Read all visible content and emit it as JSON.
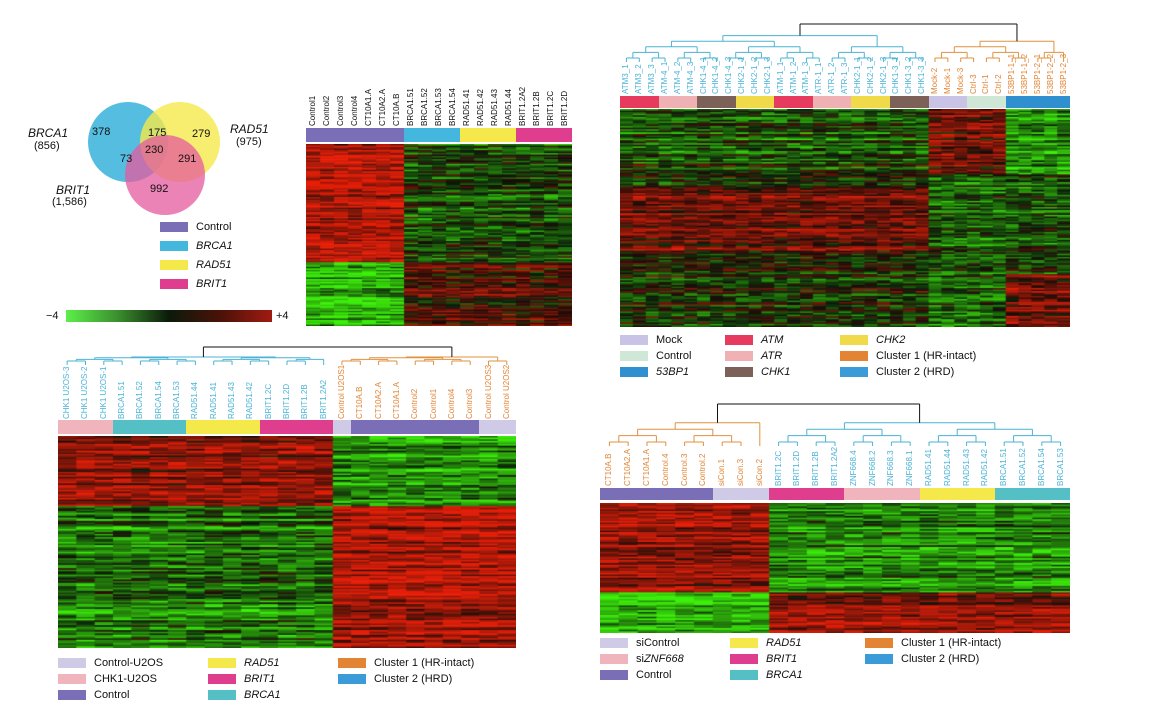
{
  "colors": {
    "control": "#7a6fb7",
    "brca1": "#43b7dd",
    "rad51": "#f5e84a",
    "brit1": "#df3d8e",
    "mock": "#c9c4e6",
    "controlLight": "#cfe7d6",
    "p53bp1": "#2f8fcf",
    "atm": "#e63a5e",
    "atr": "#f0b1b4",
    "chk1": "#7b6158",
    "chk2": "#f0da4a",
    "cluster1": "#e28434",
    "cluster2": "#3b9ad8",
    "controlU2os": "#cfcbe6",
    "chk1U2os": "#f0b5bc",
    "brca1Teal": "#54bfc4",
    "siControl": "#cfcbe6",
    "siZnf": "#f0b5bc",
    "dendroBlue": "#4ab3d6",
    "dendroOrange": "#e0913f"
  },
  "venn": {
    "labels": {
      "brca1": "BRCA1",
      "brca1_count": "(856)",
      "rad51": "RAD51",
      "rad51_count": "(975)",
      "brit1": "BRIT1",
      "brit1_count": "(1,586)"
    },
    "regions": {
      "brca1_only": "378",
      "brca1_rad51": "175",
      "rad51_only": "279",
      "all": "230",
      "brca1_brit1": "73",
      "rad51_brit1": "291",
      "brit1_only": "992"
    }
  },
  "panelA": {
    "legend": [
      {
        "label": "Control",
        "colorKey": "control",
        "italic": false
      },
      {
        "label": "BRCA1",
        "colorKey": "brca1",
        "italic": true
      },
      {
        "label": "RAD51",
        "colorKey": "rad51",
        "italic": true
      },
      {
        "label": "BRIT1",
        "colorKey": "brit1",
        "italic": true
      }
    ],
    "scale": {
      "min": "−4",
      "max": "+4"
    },
    "columns": [
      "Control1",
      "Control2",
      "Control3",
      "Control4",
      "CT10A1.A",
      "CT10A2.A",
      "CT10A.B",
      "BRCA1.51",
      "BRCA1.52",
      "BRCA1.53",
      "BRCA1.54",
      "RAD51.41",
      "RAD51.42",
      "RAD51.43",
      "RAD51.44",
      "BRIT1.2A2",
      "BRIT1.2B",
      "BRIT1.2C",
      "BRIT1.2D"
    ],
    "groups": [
      {
        "key": "control",
        "n": 7
      },
      {
        "key": "brca1",
        "n": 4
      },
      {
        "key": "rad51",
        "n": 4
      },
      {
        "key": "brit1",
        "n": 4
      }
    ]
  },
  "panelB": {
    "columns": [
      "ATM3_1",
      "ATM3_2",
      "ATM3_3",
      "ATM-4_1",
      "ATM-4_2",
      "ATM-4_3",
      "CHK1-4_1",
      "CHK1-4_2",
      "CHK1-4_3",
      "CHK2-1_1",
      "CHK2-1_2",
      "CHK2-1_3",
      "ATM-1_1",
      "ATM-1_2",
      "ATM-1_3",
      "ATR-1_1",
      "ATR-1_2",
      "ATR-1_3",
      "CHK2-1_1",
      "CHK2-1_2",
      "CHK2-1_3",
      "CHK1-3_1",
      "CHK1-3_2",
      "CHK1-3_3",
      "Mock-2",
      "Mock-1",
      "Mock-3",
      "Ctrl-3",
      "Ctrl-1",
      "Ctrl-2",
      "53BP1-1_1",
      "53BP1-1_2",
      "53BP1-2_1",
      "53BP1-2_2",
      "53BP1-2_3"
    ],
    "groups": [
      {
        "key": "atm",
        "n": 3
      },
      {
        "key": "atr",
        "n": 3
      },
      {
        "key": "chk1",
        "n": 3
      },
      {
        "key": "chk2",
        "n": 3
      },
      {
        "key": "atm",
        "n": 3
      },
      {
        "key": "atr",
        "n": 3
      },
      {
        "key": "chk2",
        "n": 3
      },
      {
        "key": "chk1",
        "n": 3
      },
      {
        "key": "mock",
        "n": 3
      },
      {
        "key": "controlLight",
        "n": 3
      },
      {
        "key": "p53bp1",
        "n": 5
      }
    ],
    "legend": [
      {
        "label": "Mock",
        "colorKey": "mock",
        "italic": false
      },
      {
        "label": "ATM",
        "colorKey": "atm",
        "italic": true
      },
      {
        "label": "CHK2",
        "colorKey": "chk2",
        "italic": true
      },
      {
        "label": "Control",
        "colorKey": "controlLight",
        "italic": false
      },
      {
        "label": "ATR",
        "colorKey": "atr",
        "italic": true
      },
      {
        "label": "Cluster 1 (HR-intact)",
        "colorKey": "cluster1",
        "italic": false
      },
      {
        "label": "53BP1",
        "colorKey": "p53bp1",
        "italic": true
      },
      {
        "label": "CHK1",
        "colorKey": "chk1",
        "italic": true
      },
      {
        "label": "Cluster 2 (HRD)",
        "colorKey": "cluster2",
        "italic": false
      }
    ]
  },
  "panelC": {
    "columns": [
      "CHK1 U2OS-3",
      "CHK1 U2OS-2",
      "CHK1 U2OS-1",
      "BRCA1.51",
      "BRCA1.52",
      "BRCA1.54",
      "BRCA1.53",
      "RAD51.44",
      "RAD51.41",
      "RAD51.43",
      "RAD51.42",
      "BRIT1.2C",
      "BRIT1.2D",
      "BRIT1.2B",
      "BRIT1.2A2",
      "Control U2OS1",
      "CT10A.B",
      "CT10A2.A",
      "CT10A1.A",
      "Control2",
      "Control1",
      "Control4",
      "Control3",
      "Control U2OS3",
      "Control U2OS2"
    ],
    "groups": [
      {
        "key": "chk1U2os",
        "n": 3
      },
      {
        "key": "brca1Teal",
        "n": 4
      },
      {
        "key": "rad51",
        "n": 4
      },
      {
        "key": "brit1",
        "n": 4
      },
      {
        "key": "controlU2os",
        "n": 1
      },
      {
        "key": "control",
        "n": 7
      },
      {
        "key": "controlU2os",
        "n": 2
      }
    ],
    "legend": [
      {
        "label": "Control-U2OS",
        "colorKey": "controlU2os",
        "italic": false
      },
      {
        "label": "RAD51",
        "colorKey": "rad51",
        "italic": true
      },
      {
        "label": "Cluster 1 (HR-intact)",
        "colorKey": "cluster1",
        "italic": false
      },
      {
        "label": "CHK1-U2OS",
        "colorKey": "chk1U2os",
        "italic": false
      },
      {
        "label": "BRIT1",
        "colorKey": "brit1",
        "italic": true
      },
      {
        "label": "Cluster 2 (HRD)",
        "colorKey": "cluster2",
        "italic": false
      },
      {
        "label": "Control",
        "colorKey": "control",
        "italic": false
      },
      {
        "label": "BRCA1",
        "colorKey": "brca1Teal",
        "italic": true
      }
    ]
  },
  "panelD": {
    "columns": [
      "CT10A.B",
      "CT10A2.A",
      "CT10A1.A",
      "Control.4",
      "Control.3",
      "Control.2",
      "siCon.1",
      "siCon.3",
      "siCon.2",
      "BRIT1.2C",
      "BRIT1.2D",
      "BRIT1.2B",
      "BRIT1.2A2",
      "ZNF668.4",
      "ZNF668.2",
      "ZNF668.3",
      "ZNF668.1",
      "RAD51.41",
      "RAD51.44",
      "RAD51.43",
      "RAD51.42",
      "BRCA1.51",
      "BRCA1.52",
      "BRCA1.54",
      "BRCA1.53"
    ],
    "groups": [
      {
        "key": "control",
        "n": 6
      },
      {
        "key": "siControl",
        "n": 3
      },
      {
        "key": "brit1",
        "n": 4
      },
      {
        "key": "siZnf",
        "n": 4
      },
      {
        "key": "rad51",
        "n": 4
      },
      {
        "key": "brca1Teal",
        "n": 4
      }
    ],
    "legend": [
      {
        "label": "siControl",
        "colorKey": "siControl",
        "italic": false
      },
      {
        "label": "RAD51",
        "colorKey": "rad51",
        "italic": true
      },
      {
        "label": "Cluster 1 (HR-intact)",
        "colorKey": "cluster1",
        "italic": false
      },
      {
        "label": "siZNF668",
        "colorKey": "siZnf",
        "italic": false,
        "prefix": "si",
        "italicPart": "ZNF668"
      },
      {
        "label": "BRIT1",
        "colorKey": "brit1",
        "italic": true
      },
      {
        "label": "Cluster 2 (HRD)",
        "colorKey": "cluster2",
        "italic": false
      },
      {
        "label": "Control",
        "colorKey": "control",
        "italic": false
      },
      {
        "label": "BRCA1",
        "colorKey": "brca1Teal",
        "italic": true
      }
    ]
  }
}
